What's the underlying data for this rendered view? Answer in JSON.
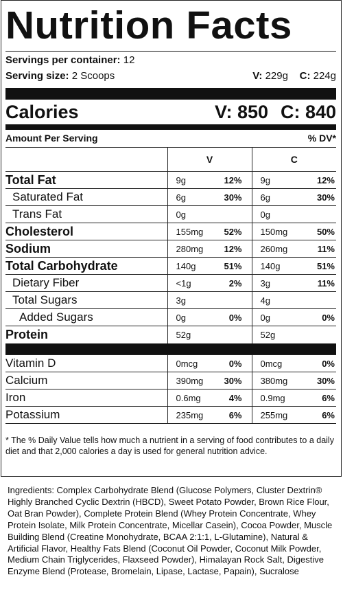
{
  "label": {
    "title": "Nutrition Facts",
    "servings_per_container_label": "Servings per container:",
    "servings_per_container_value": "12",
    "serving_size_label": "Serving size:",
    "serving_size_value": "2 Scoops",
    "serving_v_label": "V:",
    "serving_v_value": "229g",
    "serving_c_label": "C:",
    "serving_c_value": "224g",
    "calories_label": "Calories",
    "calories_v": "V: 850",
    "calories_c": "C: 840",
    "amount_per_serving": "Amount Per Serving",
    "dv_header": "% DV*",
    "col_v": "V",
    "col_c": "C",
    "rows": [
      {
        "name": "Total Fat",
        "v_amt": "9g",
        "v_pct": "12%",
        "c_amt": "9g",
        "c_pct": "12%"
      },
      {
        "name": "Saturated Fat",
        "v_amt": "6g",
        "v_pct": "30%",
        "c_amt": "6g",
        "c_pct": "30%"
      },
      {
        "name": "Trans Fat",
        "v_amt": "0g",
        "v_pct": "",
        "c_amt": "0g",
        "c_pct": ""
      },
      {
        "name": "Cholesterol",
        "v_amt": "155mg",
        "v_pct": "52%",
        "c_amt": "150mg",
        "c_pct": "50%"
      },
      {
        "name": "Sodium",
        "v_amt": "280mg",
        "v_pct": "12%",
        "c_amt": "260mg",
        "c_pct": "11%"
      },
      {
        "name": "Total Carbohydrate",
        "v_amt": "140g",
        "v_pct": "51%",
        "c_amt": "140g",
        "c_pct": "51%"
      },
      {
        "name": "Dietary Fiber",
        "v_amt": "<1g",
        "v_pct": "2%",
        "c_amt": "3g",
        "c_pct": "11%"
      },
      {
        "name": "Total Sugars",
        "v_amt": "3g",
        "v_pct": "",
        "c_amt": "4g",
        "c_pct": ""
      },
      {
        "name": "Added Sugars",
        "v_amt": "0g",
        "v_pct": "0%",
        "c_amt": "0g",
        "c_pct": "0%"
      },
      {
        "name": "Protein",
        "v_amt": "52g",
        "v_pct": "",
        "c_amt": "52g",
        "c_pct": ""
      },
      {
        "name": "Vitamin D",
        "v_amt": "0mcg",
        "v_pct": "0%",
        "c_amt": "0mcg",
        "c_pct": "0%"
      },
      {
        "name": "Calcium",
        "v_amt": "390mg",
        "v_pct": "30%",
        "c_amt": "380mg",
        "c_pct": "30%"
      },
      {
        "name": "Iron",
        "v_amt": "0.6mg",
        "v_pct": "4%",
        "c_amt": "0.9mg",
        "c_pct": "6%"
      },
      {
        "name": "Potassium",
        "v_amt": "235mg",
        "v_pct": "6%",
        "c_amt": "255mg",
        "c_pct": "6%"
      }
    ],
    "footnote": "* The % Daily Value tells how much a nutrient in a serving of food contributes to a daily diet and that 2,000 calories a day is used for general nutrition advice."
  },
  "ingredients": "Ingredients: Complex Carbohydrate Blend (Glucose Polymers, Cluster Dextrin® Highly Branched Cyclic Dextrin (HBCD), Sweet Potato Powder, Brown Rice Flour, Oat Bran Powder), Complete Protein Blend (Whey Protein Concentrate, Whey Protein Isolate, Milk Protein Concentrate, Micellar Casein), Cocoa Powder, Muscle Building Blend (Creatine Monohydrate, BCAA 2:1:1, L-Glutamine), Natural & Artificial Flavor, Healthy Fats Blend (Coconut Oil Powder, Coconut Milk Powder, Medium Chain Triglycerides, Flaxseed Powder), Himalayan Rock Salt, Digestive Enzyme Blend (Protease, Bromelain, Lipase, Lactase, Papain), Sucralose"
}
